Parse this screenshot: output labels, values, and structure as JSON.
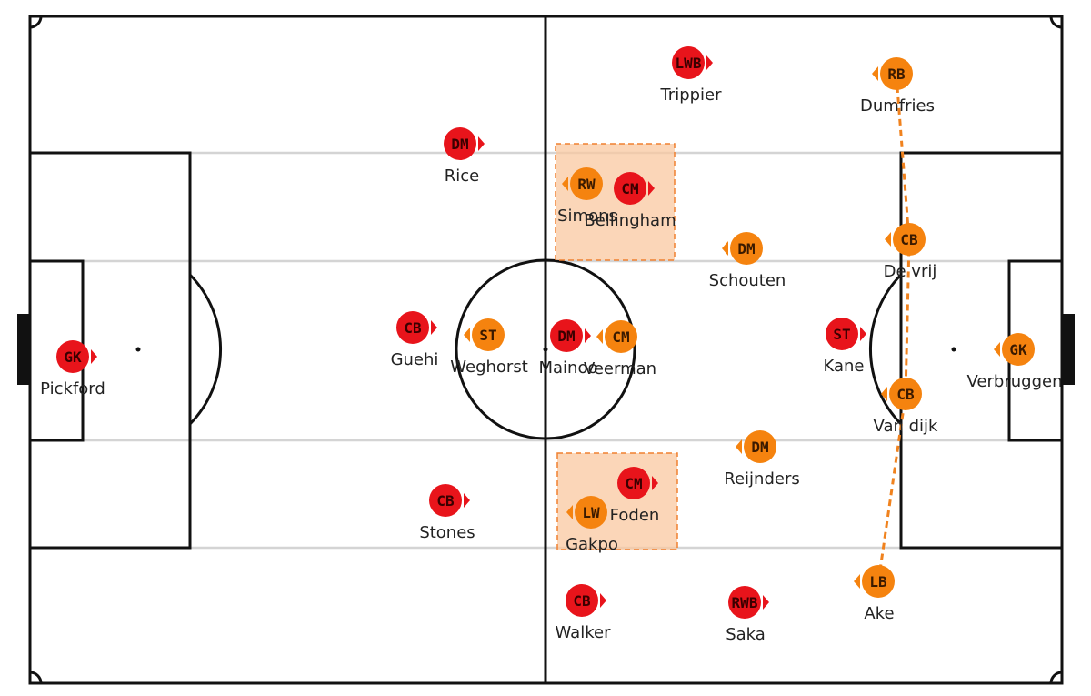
{
  "colors": {
    "pitch_line": "#111111",
    "lane_line": "#d4d4d4",
    "team_red": "#e8141b",
    "team_red_text": "#3a0000",
    "team_orange": "#f5830f",
    "team_orange_text": "#3a1a00",
    "overload_box": "#f9c8a0",
    "overload_border": "#f08030",
    "back_line": "#f0821e"
  },
  "england": [
    {
      "name": "Pickford",
      "pos": "GK"
    },
    {
      "name": "Guehi",
      "pos": "CB"
    },
    {
      "name": "Stones",
      "pos": "CB"
    },
    {
      "name": "Walker",
      "pos": "CB"
    },
    {
      "name": "Rice",
      "pos": "DM"
    },
    {
      "name": "Mainoo",
      "pos": "DM"
    },
    {
      "name": "Trippier",
      "pos": "LWB"
    },
    {
      "name": "Saka",
      "pos": "RWB"
    },
    {
      "name": "Bellingham",
      "pos": "CM"
    },
    {
      "name": "Foden",
      "pos": "CM"
    },
    {
      "name": "Kane",
      "pos": "ST"
    }
  ],
  "netherlands": [
    {
      "name": "Verbruggen",
      "pos": "GK"
    },
    {
      "name": "De vrij",
      "pos": "CB"
    },
    {
      "name": "Van dijk",
      "pos": "CB"
    },
    {
      "name": "Dumfries",
      "pos": "RB"
    },
    {
      "name": "Ake",
      "pos": "LB"
    },
    {
      "name": "Schouten",
      "pos": "DM"
    },
    {
      "name": "Reijnders",
      "pos": "DM"
    },
    {
      "name": "Veerman",
      "pos": "CM"
    },
    {
      "name": "Simons",
      "pos": "RW"
    },
    {
      "name": "Gakpo",
      "pos": "LW"
    },
    {
      "name": "Weghorst",
      "pos": "ST"
    }
  ]
}
